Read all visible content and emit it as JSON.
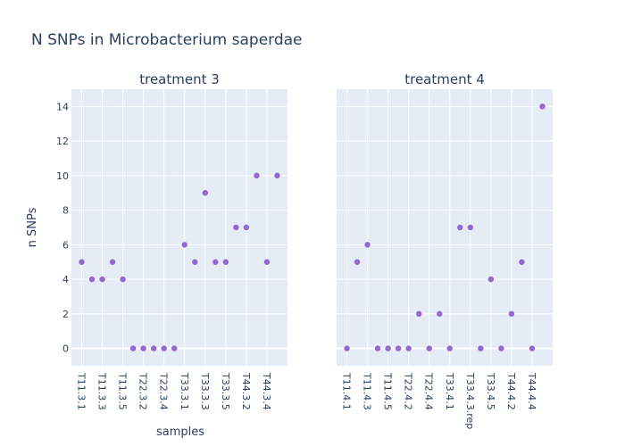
{
  "chart_data": {
    "type": "scatter",
    "title": "N SNPs in Microbacterium saperdae",
    "xlabel": "samples",
    "ylabel": "n SNPs",
    "ylim": [
      -1,
      15
    ],
    "yticks": [
      0,
      2,
      4,
      6,
      8,
      10,
      12,
      14
    ],
    "grid": true,
    "colors": {
      "marker": "#9467d2",
      "plot_bg": "#e5ecf6"
    },
    "panels": [
      {
        "name": "treatment 3",
        "tick_labels": [
          "T11.3.1",
          "T11.3.3",
          "T11.3.5",
          "T22.3.2",
          "T22.3.4",
          "T33.3.1",
          "T33.3.3",
          "T33.3.5",
          "T44.3.2",
          "T44.3.4"
        ],
        "values": [
          5,
          4,
          4,
          5,
          4,
          0,
          0,
          0,
          0,
          0,
          6,
          5,
          9,
          5,
          5,
          7,
          7,
          10,
          5,
          10
        ]
      },
      {
        "name": "treatment 4",
        "tick_labels": [
          "T11.4.1",
          "T11.4.3",
          "T11.4.5",
          "T22.4.2",
          "T22.4.4",
          "T33.4.1",
          "T33.4.3.rep",
          "T33.4.5",
          "T44.4.2",
          "T44.4.4"
        ],
        "values": [
          0,
          5,
          6,
          0,
          0,
          0,
          0,
          2,
          0,
          2,
          0,
          7,
          7,
          0,
          4,
          0,
          2,
          5,
          0,
          14
        ]
      }
    ]
  }
}
